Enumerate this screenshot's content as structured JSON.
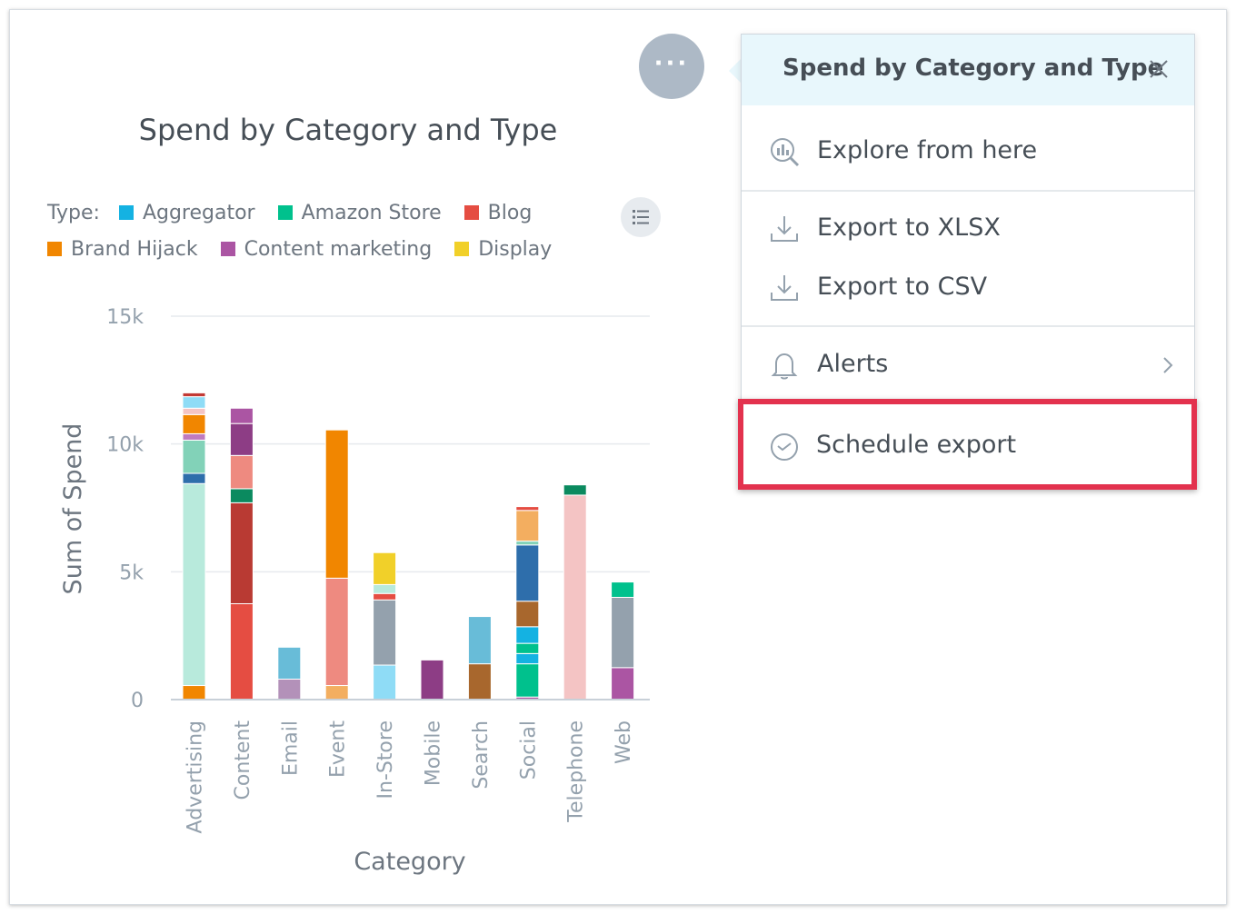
{
  "chart": {
    "title": "Spend by Category and Type",
    "legend": {
      "label": "Type:",
      "items": [
        {
          "name": "Aggregator",
          "color": "#14b2e2"
        },
        {
          "name": "Amazon Store",
          "color": "#00c18d"
        },
        {
          "name": "Blog",
          "color": "#e54d42"
        },
        {
          "name": "Brand Hijack",
          "color": "#f18600"
        },
        {
          "name": "Content marketing",
          "color": "#ab55a3"
        },
        {
          "name": "Display",
          "color": "#f1d029"
        }
      ]
    },
    "legend_toggle_icon": "list-icon"
  },
  "chart_data": {
    "type": "bar",
    "stacked": true,
    "xlabel": "Category",
    "ylabel": "Sum of Spend",
    "ylim": [
      0,
      15000
    ],
    "yticks": [
      "0",
      "5k",
      "10k",
      "15k"
    ],
    "grid": true,
    "legend_position": "top",
    "categories": [
      "Advertising",
      "Content",
      "Email",
      "Event",
      "In-Store",
      "Mobile",
      "Search",
      "Social",
      "Telephone",
      "Web"
    ],
    "stacks": [
      {
        "category": "Advertising",
        "segments": [
          {
            "value": 550,
            "color": "#f18600"
          },
          {
            "value": 7900,
            "color": "#b8eadc"
          },
          {
            "value": 400,
            "color": "#2e6eab"
          },
          {
            "value": 1300,
            "color": "#82d2b8"
          },
          {
            "value": 250,
            "color": "#c07bbf"
          },
          {
            "value": 750,
            "color": "#f18600"
          },
          {
            "value": 250,
            "color": "#f4c4c4"
          },
          {
            "value": 450,
            "color": "#8fdcf6"
          },
          {
            "value": 150,
            "color": "#c23a35"
          }
        ]
      },
      {
        "category": "Content",
        "segments": [
          {
            "value": 3750,
            "color": "#e54d42"
          },
          {
            "value": 3950,
            "color": "#b93a33"
          },
          {
            "value": 550,
            "color": "#0b8a5f"
          },
          {
            "value": 1300,
            "color": "#ee8a80"
          },
          {
            "value": 1250,
            "color": "#8d3d85"
          },
          {
            "value": 600,
            "color": "#ab55a3"
          }
        ]
      },
      {
        "category": "Email",
        "segments": [
          {
            "value": 800,
            "color": "#b391b9"
          },
          {
            "value": 1250,
            "color": "#68bcd8"
          }
        ]
      },
      {
        "category": "Event",
        "segments": [
          {
            "value": 550,
            "color": "#f3ae60"
          },
          {
            "value": 4200,
            "color": "#ee8a80"
          },
          {
            "value": 5800,
            "color": "#f18600"
          }
        ]
      },
      {
        "category": "In-Store",
        "segments": [
          {
            "value": 1350,
            "color": "#8fdcf6"
          },
          {
            "value": 2550,
            "color": "#94a1ad"
          },
          {
            "value": 250,
            "color": "#e54d42"
          },
          {
            "value": 350,
            "color": "#b8eadc"
          },
          {
            "value": 1250,
            "color": "#f1d029"
          }
        ]
      },
      {
        "category": "Mobile",
        "segments": [
          {
            "value": 1550,
            "color": "#8d3d85"
          }
        ]
      },
      {
        "category": "Search",
        "segments": [
          {
            "value": 1400,
            "color": "#a8672d"
          },
          {
            "value": 1850,
            "color": "#68bcd8"
          }
        ]
      },
      {
        "category": "Social",
        "segments": [
          {
            "value": 100,
            "color": "#ab55a3"
          },
          {
            "value": 1300,
            "color": "#00c18d"
          },
          {
            "value": 400,
            "color": "#14b2e2"
          },
          {
            "value": 400,
            "color": "#00c18d"
          },
          {
            "value": 650,
            "color": "#14b2e2"
          },
          {
            "value": 1000,
            "color": "#a8672d"
          },
          {
            "value": 2200,
            "color": "#2e6eab"
          },
          {
            "value": 150,
            "color": "#82d2b8"
          },
          {
            "value": 1200,
            "color": "#f3ae60"
          },
          {
            "value": 150,
            "color": "#e54d42"
          }
        ]
      },
      {
        "category": "Telephone",
        "segments": [
          {
            "value": 8000,
            "color": "#f4c4c4"
          },
          {
            "value": 400,
            "color": "#0b8a5f"
          }
        ]
      },
      {
        "category": "Web",
        "segments": [
          {
            "value": 1250,
            "color": "#ab55a3"
          },
          {
            "value": 2750,
            "color": "#94a1ad"
          },
          {
            "value": 600,
            "color": "#00c18d"
          }
        ]
      }
    ]
  },
  "options_button": {
    "icon": "more-dots-icon",
    "glyph": "···"
  },
  "menu": {
    "title": "Spend by Category and Type",
    "close_icon": "close-icon",
    "items": [
      {
        "label": "Explore from here",
        "icon": "explore-chart-icon"
      },
      {
        "label": "Export to XLSX",
        "icon": "download-icon"
      },
      {
        "label": "Export to CSV",
        "icon": "download-icon"
      },
      {
        "label": "Alerts",
        "icon": "bell-icon",
        "has_submenu": true
      },
      {
        "label": "Schedule export",
        "icon": "clock-icon",
        "highlighted": true
      }
    ]
  },
  "colors": {
    "highlight_border": "#e3324e",
    "menu_header_bg": "#e8f7fc",
    "options_button_bg": "#adb9c6"
  }
}
